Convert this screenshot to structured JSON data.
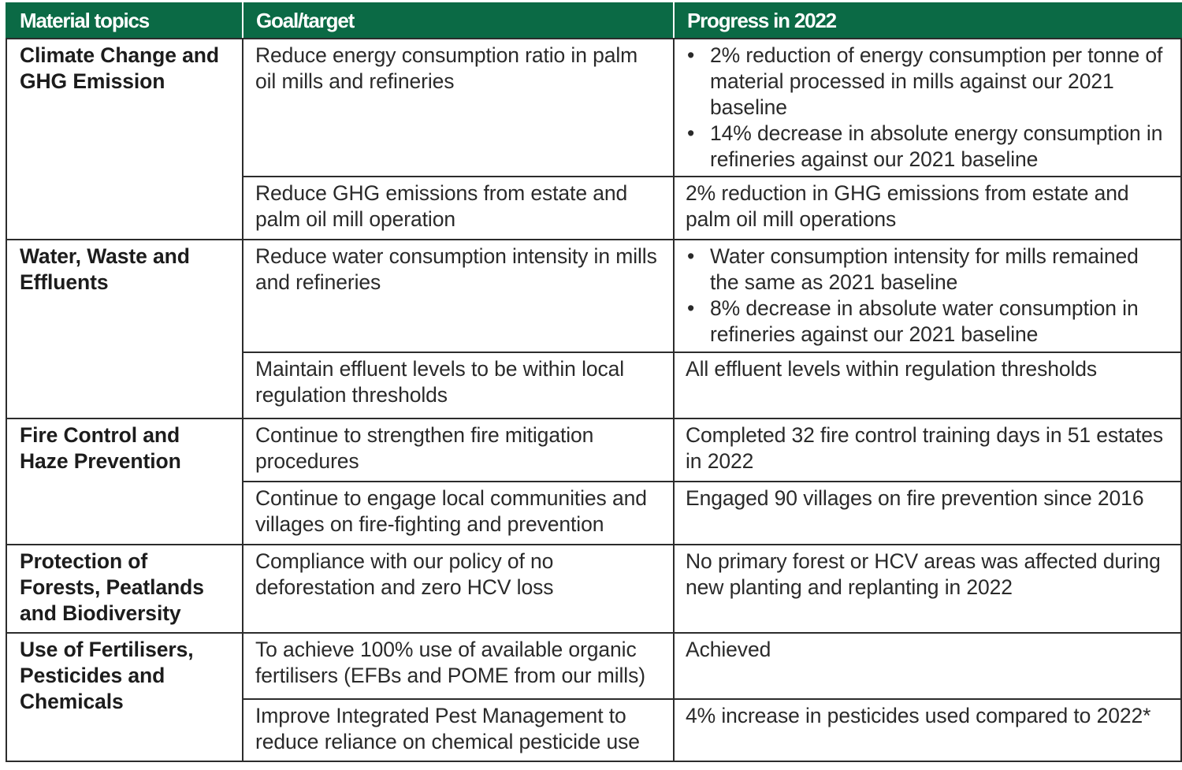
{
  "table": {
    "headers": [
      "Material topics",
      "Goal/target",
      "Progress in 2022"
    ],
    "rows": [
      {
        "topic": "Climate Change and GHG Emission",
        "goal": "Reduce energy consumption ratio in palm oil mills and refineries",
        "progress_bullets": [
          "2% reduction of energy consumption per tonne of material processed in mills against our 2021 baseline",
          "14% decrease in absolute energy consumption in refineries against our 2021 baseline"
        ]
      },
      {
        "goal": "Reduce GHG emissions from estate and palm oil mill operation",
        "progress": "2% reduction in GHG emissions from estate and palm oil mill operations"
      },
      {
        "topic": "Water, Waste and Effluents",
        "goal": "Reduce water consumption intensity in mills and refineries",
        "progress_bullets": [
          "Water consumption intensity for mills remained the same as 2021 baseline",
          "8% decrease in absolute water consumption in refineries against our 2021 baseline"
        ]
      },
      {
        "goal": "Maintain effluent levels to be within local regulation thresholds",
        "progress": "All effluent levels within regulation thresholds"
      },
      {
        "topic": "Fire Control and Haze Prevention",
        "goal": "Continue to strengthen fire mitigation procedures",
        "progress": "Completed 32 fire control training days in 51 estates in 2022"
      },
      {
        "goal": "Continue to engage local communities and villages on fire-fighting and prevention",
        "progress": "Engaged 90 villages on fire prevention since 2016"
      },
      {
        "topic": "Protection of Forests, Peatlands and Biodiversity",
        "goal": "Compliance with our policy of no deforestation and zero HCV loss",
        "progress": "No primary forest or HCV areas was affected during new planting and replanting in 2022"
      },
      {
        "topic": "Use of Fertilisers, Pesticides and Chemicals",
        "goal": "To achieve 100% use of available organic fertilisers (EFBs and POME from our mills)",
        "progress": "Achieved"
      },
      {
        "goal": "Improve Integrated Pest Management to reduce reliance on chemical pesticide use",
        "progress": "4% increase in pesticides used compared to 2022*"
      }
    ]
  }
}
